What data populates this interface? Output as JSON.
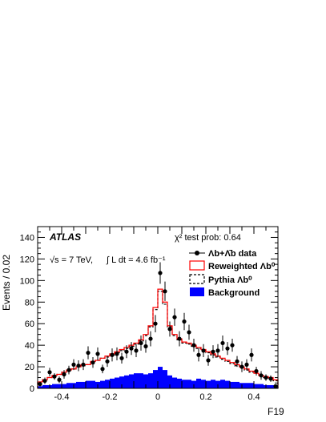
{
  "chart_data": {
    "type": "histogram",
    "xlabel": "F19",
    "ylabel": "Events / 0.02",
    "xlim": [
      -0.5,
      0.5
    ],
    "ylim": [
      0,
      150
    ],
    "x_ticks": [
      -0.4,
      -0.2,
      0,
      0.2,
      0.4
    ],
    "x_tick_labels": [
      "-0.4",
      "-0.2",
      "0",
      "0.2",
      "0.4"
    ],
    "y_ticks": [
      0,
      20,
      40,
      60,
      80,
      100,
      120,
      140
    ],
    "y_tick_labels": [
      "0",
      "20",
      "40",
      "60",
      "80",
      "100",
      "120",
      "140"
    ],
    "experiment_label": "ATLAS",
    "energy_text": "√s = 7 TeV,",
    "lumi_text": "∫ L dt = 4.6 fb⁻¹",
    "chi2_text": "χ² test prob: 0.64",
    "legend_position": "right",
    "legend": {
      "data": "Λb+Λ̄b data",
      "reweighted": "Reweighted Λb⁰",
      "pythia": "Pythia Λb⁰",
      "background": "Background"
    },
    "colors": {
      "data": "#000000",
      "reweighted": "#ff0000",
      "pythia": "#000000",
      "background": "#0000ff"
    },
    "bins": [
      -0.5,
      -0.48,
      -0.46,
      -0.44,
      -0.42,
      -0.4,
      -0.38,
      -0.36,
      -0.34,
      -0.32,
      -0.3,
      -0.28,
      -0.26,
      -0.24,
      -0.22,
      -0.2,
      -0.18,
      -0.16,
      -0.14,
      -0.12,
      -0.1,
      -0.08,
      -0.06,
      -0.04,
      -0.02,
      0,
      0.02,
      0.04,
      0.06,
      0.08,
      0.1,
      0.12,
      0.14,
      0.16,
      0.18,
      0.2,
      0.22,
      0.24,
      0.26,
      0.28,
      0.3,
      0.32,
      0.34,
      0.36,
      0.38,
      0.4,
      0.42,
      0.44,
      0.46,
      0.48,
      0.5
    ],
    "reweighted_values": [
      6,
      8,
      10,
      12,
      13,
      15,
      17,
      18,
      20,
      22,
      22,
      25,
      26,
      28,
      30,
      32,
      34,
      36,
      38,
      40,
      42,
      45,
      50,
      58,
      75,
      92,
      80,
      58,
      50,
      46,
      43,
      42,
      40,
      38,
      36,
      34,
      32,
      30,
      28,
      26,
      24,
      22,
      20,
      18,
      16,
      14,
      12,
      11,
      10,
      8
    ],
    "pythia_values": [
      6,
      8,
      10,
      11,
      13,
      15,
      16,
      18,
      20,
      21,
      22,
      24,
      26,
      28,
      29,
      31,
      33,
      35,
      37,
      39,
      41,
      44,
      49,
      57,
      73,
      90,
      78,
      57,
      49,
      45,
      42,
      41,
      39,
      37,
      35,
      33,
      31,
      29,
      27,
      25,
      23,
      21,
      19,
      17,
      15,
      14,
      12,
      10,
      9,
      7
    ],
    "background_values": [
      2,
      3,
      3,
      4,
      4,
      4,
      5,
      5,
      6,
      6,
      7,
      7,
      6,
      7,
      8,
      9,
      10,
      11,
      12,
      13,
      14,
      14,
      13,
      14,
      17,
      20,
      17,
      12,
      10,
      9,
      8,
      8,
      7,
      9,
      8,
      7,
      8,
      7,
      8,
      7,
      6,
      6,
      5,
      5,
      5,
      4,
      4,
      3,
      3,
      3
    ],
    "data_values": [
      4,
      7,
      15,
      11,
      8,
      13,
      17,
      22,
      21,
      22,
      33,
      24,
      32,
      18,
      25,
      31,
      32,
      28,
      34,
      37,
      35,
      42,
      39,
      46,
      60,
      107,
      90,
      55,
      66,
      46,
      62,
      52,
      40,
      31,
      35,
      26,
      34,
      35,
      42,
      37,
      40,
      25,
      20,
      22,
      31,
      16,
      12,
      10,
      9,
      2
    ],
    "data_errors": [
      2,
      3,
      4,
      3,
      3,
      4,
      4,
      5,
      5,
      5,
      6,
      5,
      6,
      4,
      5,
      6,
      6,
      5,
      6,
      6,
      6,
      7,
      6,
      7,
      8,
      10,
      9,
      7,
      8,
      7,
      8,
      7,
      6,
      6,
      6,
      5,
      6,
      6,
      7,
      6,
      6,
      5,
      5,
      5,
      6,
      4,
      4,
      3,
      3,
      1.5
    ]
  }
}
